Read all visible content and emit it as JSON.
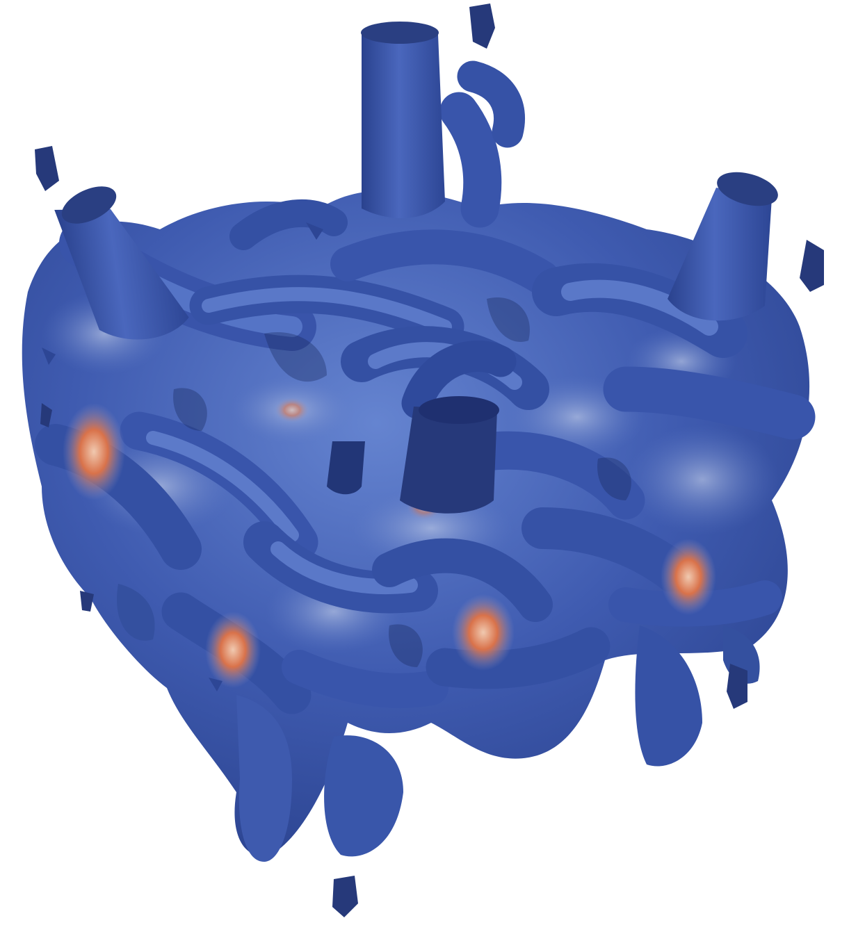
{
  "colors": {
    "background": "#ffffff",
    "surface_light": "#5b78c8",
    "surface_mid": "#3c56a8",
    "surface_dark": "#223777",
    "surface_shadow": "#17285c",
    "highlight_pale": "#9fb1dc",
    "hot_orange": "#d9724a",
    "hot_cream": "#f0c9b0"
  }
}
